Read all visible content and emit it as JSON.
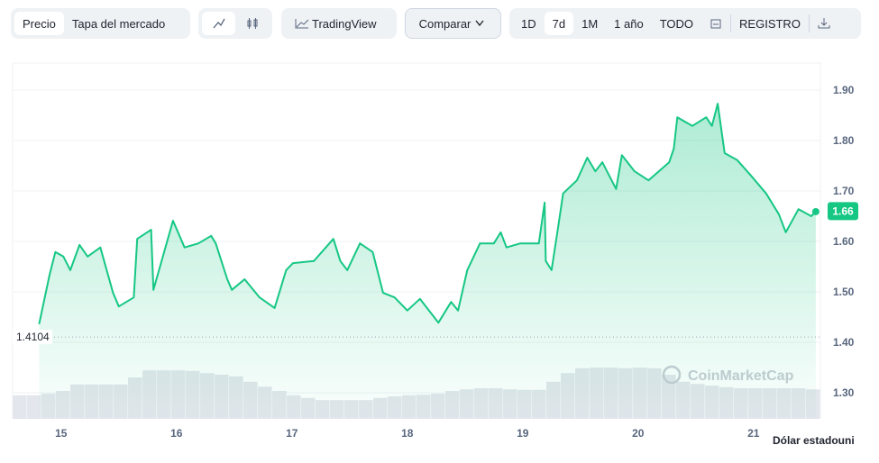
{
  "toolbar": {
    "view_tabs": [
      "Precio",
      "Tapa del mercado"
    ],
    "tradingview": "TradingView",
    "compare": "Comparar",
    "ranges": [
      "1D",
      "7d",
      "1M",
      "1 año",
      "TODO"
    ],
    "log": "REGISTRO"
  },
  "chart_data": {
    "type": "line",
    "x": [
      14.81,
      14.9,
      14.95,
      15.02,
      15.08,
      15.16,
      15.23,
      15.34,
      15.45,
      15.5,
      15.63,
      15.66,
      15.78,
      15.8,
      15.86,
      15.97,
      16.07,
      16.19,
      16.3,
      16.34,
      16.44,
      16.48,
      16.59,
      16.72,
      16.85,
      16.95,
      17.01,
      17.19,
      17.36,
      17.42,
      17.48,
      17.59,
      17.7,
      17.79,
      17.89,
      18.0,
      18.11,
      18.27,
      18.38,
      18.44,
      18.52,
      18.63,
      18.75,
      18.81,
      18.86,
      18.98,
      19.14,
      19.19,
      19.2,
      19.25,
      19.31,
      19.35,
      19.47,
      19.56,
      19.63,
      19.69,
      19.81,
      19.86,
      19.97,
      20.09,
      20.27,
      20.31,
      20.34,
      20.47,
      20.59,
      20.64,
      20.69,
      20.75,
      20.86,
      20.98,
      21.11,
      21.22,
      21.28,
      21.39,
      21.5,
      21.54
    ],
    "series": [
      {
        "color": "#16c784",
        "values": [
          1.436,
          1.534,
          1.579,
          1.57,
          1.543,
          1.593,
          1.57,
          1.588,
          1.498,
          1.471,
          1.489,
          1.605,
          1.623,
          1.504,
          1.552,
          1.641,
          1.588,
          1.596,
          1.611,
          1.596,
          1.525,
          1.504,
          1.525,
          1.489,
          1.468,
          1.543,
          1.557,
          1.561,
          1.605,
          1.561,
          1.543,
          1.596,
          1.579,
          1.498,
          1.489,
          1.463,
          1.486,
          1.439,
          1.48,
          1.463,
          1.543,
          1.596,
          1.596,
          1.618,
          1.588,
          1.596,
          1.596,
          1.677,
          1.561,
          1.543,
          1.632,
          1.695,
          1.721,
          1.766,
          1.739,
          1.757,
          1.704,
          1.771,
          1.739,
          1.721,
          1.757,
          1.784,
          1.846,
          1.829,
          1.846,
          1.829,
          1.873,
          1.775,
          1.761,
          1.73,
          1.695,
          1.654,
          1.618,
          1.664,
          1.65,
          1.659
        ]
      }
    ],
    "volume": {
      "axis": "y2",
      "color": "#e3e6ec",
      "x": [
        14.641,
        14.766,
        14.891,
        15.016,
        15.141,
        15.266,
        15.391,
        15.516,
        15.641,
        15.766,
        15.891,
        16.016,
        16.141,
        16.266,
        16.391,
        16.516,
        16.641,
        16.766,
        16.891,
        17.016,
        17.141,
        17.266,
        17.391,
        17.516,
        17.641,
        17.766,
        17.891,
        18.016,
        18.141,
        18.266,
        18.391,
        18.516,
        18.641,
        18.766,
        18.891,
        19.016,
        19.141,
        19.266,
        19.391,
        19.516,
        19.641,
        19.766,
        19.891,
        20.016,
        20.141,
        20.266,
        20.391,
        20.516,
        20.641,
        20.766,
        20.891,
        21.016,
        21.141,
        21.266,
        21.391,
        21.516
      ],
      "values": [
        42,
        42,
        45,
        50,
        62,
        62,
        62,
        62,
        75,
        88,
        88,
        88,
        87,
        83,
        80,
        77,
        67,
        58,
        50,
        42,
        37,
        33,
        33,
        33,
        33,
        37,
        40,
        42,
        43,
        45,
        50,
        53,
        55,
        55,
        53,
        52,
        52,
        67,
        83,
        92,
        93,
        93,
        92,
        93,
        92,
        80,
        67,
        63,
        60,
        57,
        55,
        55,
        55,
        55,
        55,
        53
      ]
    },
    "xlim": [
      14.58,
      21.58
    ],
    "xticks": [
      15,
      16,
      17,
      18,
      19,
      20,
      21
    ],
    "ylim": [
      1.25,
      1.95
    ],
    "yticks": [
      {
        "value": 1.3,
        "label": "1.30"
      },
      {
        "value": 1.4,
        "label": "1.40"
      },
      {
        "value": 1.5,
        "label": "1.50"
      },
      {
        "value": 1.6,
        "label": "1.60"
      },
      {
        "value": 1.7,
        "label": "1.70"
      },
      {
        "value": 1.8,
        "label": "1.80"
      },
      {
        "value": 1.9,
        "label": "1.90"
      }
    ],
    "y2lim": [
      0,
      100
    ],
    "grid": true,
    "reference_line": 1.4104,
    "price_marker": 1.66,
    "watermark": "CoinMarketCap",
    "currency_label": "Dólar estadouni"
  }
}
